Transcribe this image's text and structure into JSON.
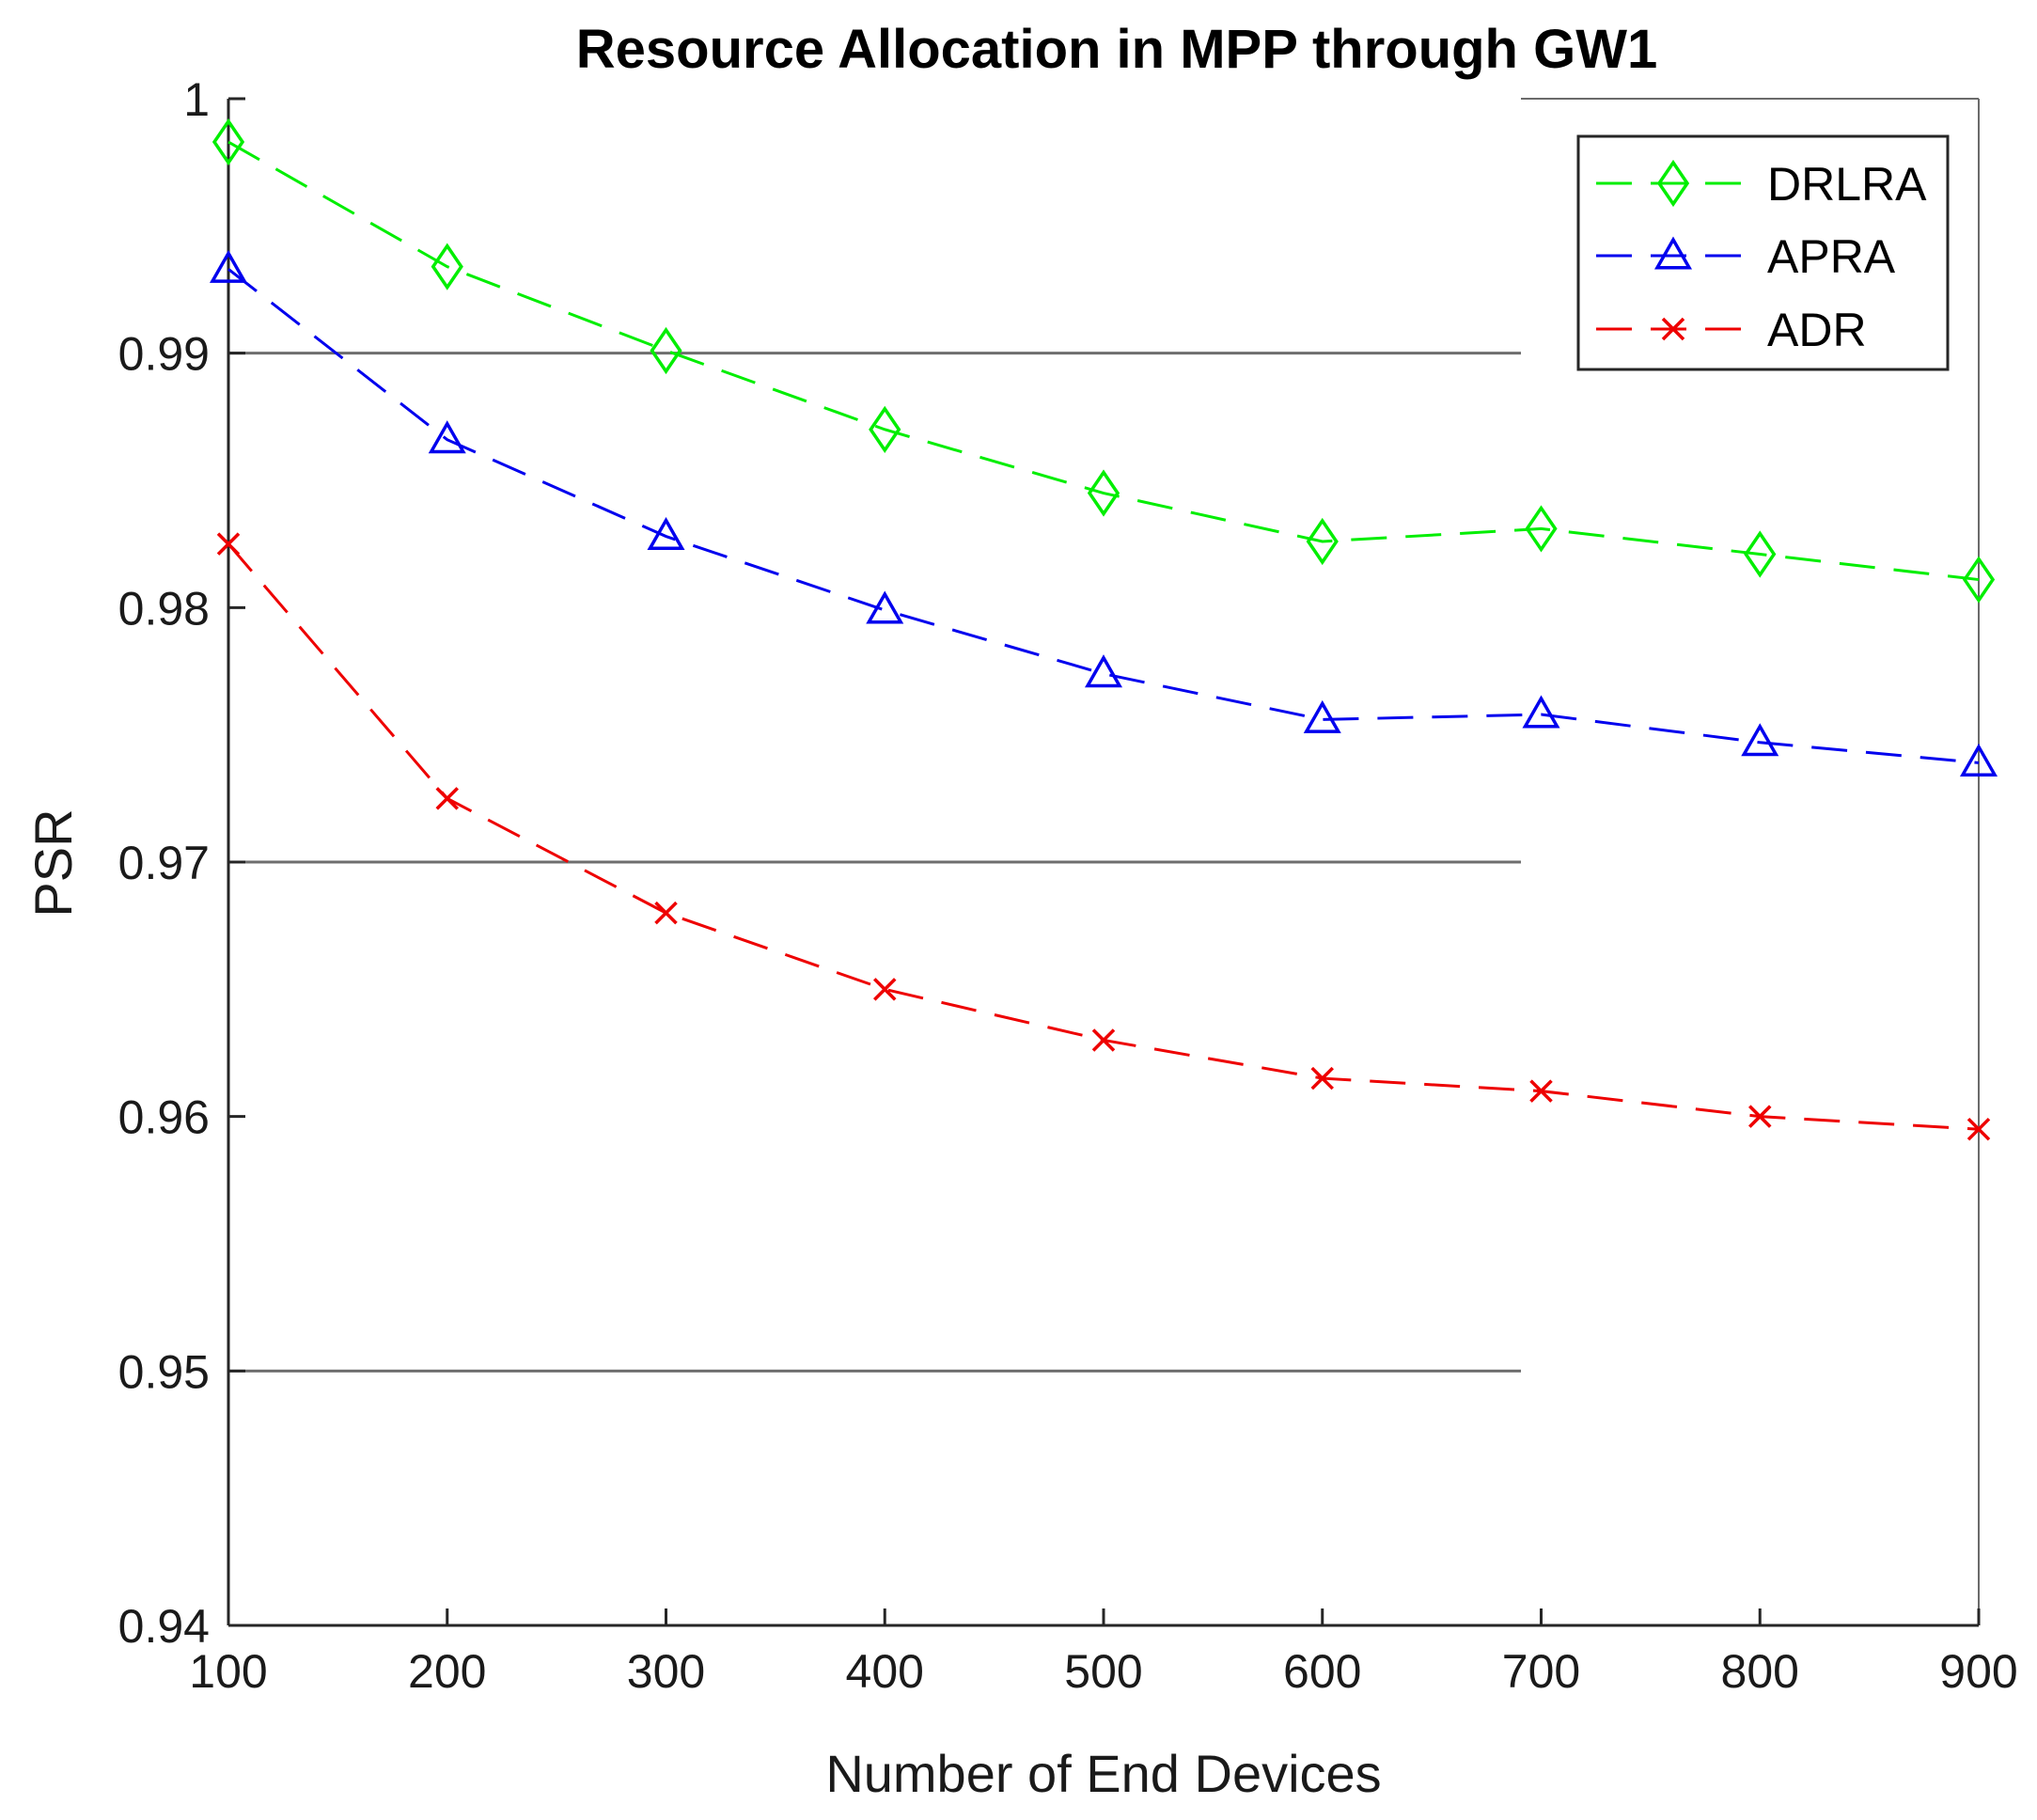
{
  "chart_data": {
    "type": "line",
    "title": "Resource Allocation in MPP through GW1",
    "xlabel": "Number of End Devices",
    "ylabel": "PSR",
    "x": [
      100,
      200,
      300,
      400,
      500,
      600,
      700,
      800,
      900
    ],
    "xlim": [
      100,
      900
    ],
    "ylim": [
      0.94,
      1.0
    ],
    "xticks": [
      "100",
      "200",
      "300",
      "400",
      "500",
      "600",
      "700",
      "800",
      "900"
    ],
    "yticks": [
      "0.94",
      "0.95",
      "0.96",
      "0.97",
      "0.98",
      "0.99",
      "1"
    ],
    "ytick_values": [
      0.94,
      0.95,
      0.96,
      0.97,
      0.98,
      0.99,
      1.0
    ],
    "grid_y_values": [
      0.95,
      0.97,
      0.99
    ],
    "legend_position": "top-right",
    "series": [
      {
        "name": "DRLRA",
        "color": "#00ee00",
        "marker": "diamond",
        "values": [
          0.9983,
          0.9934,
          0.9901,
          0.987,
          0.9845,
          0.9826,
          0.9831,
          0.9821,
          0.9811
        ]
      },
      {
        "name": "APRA",
        "color": "#0000ee",
        "marker": "triangle",
        "values": [
          0.9933,
          0.9866,
          0.9828,
          0.9799,
          0.9774,
          0.9756,
          0.9758,
          0.9747,
          0.9739
        ]
      },
      {
        "name": "ADR",
        "color": "#ee0000",
        "marker": "x",
        "values": [
          0.9825,
          0.9725,
          0.968,
          0.965,
          0.963,
          0.9615,
          0.961,
          0.96,
          0.9595
        ]
      }
    ]
  }
}
